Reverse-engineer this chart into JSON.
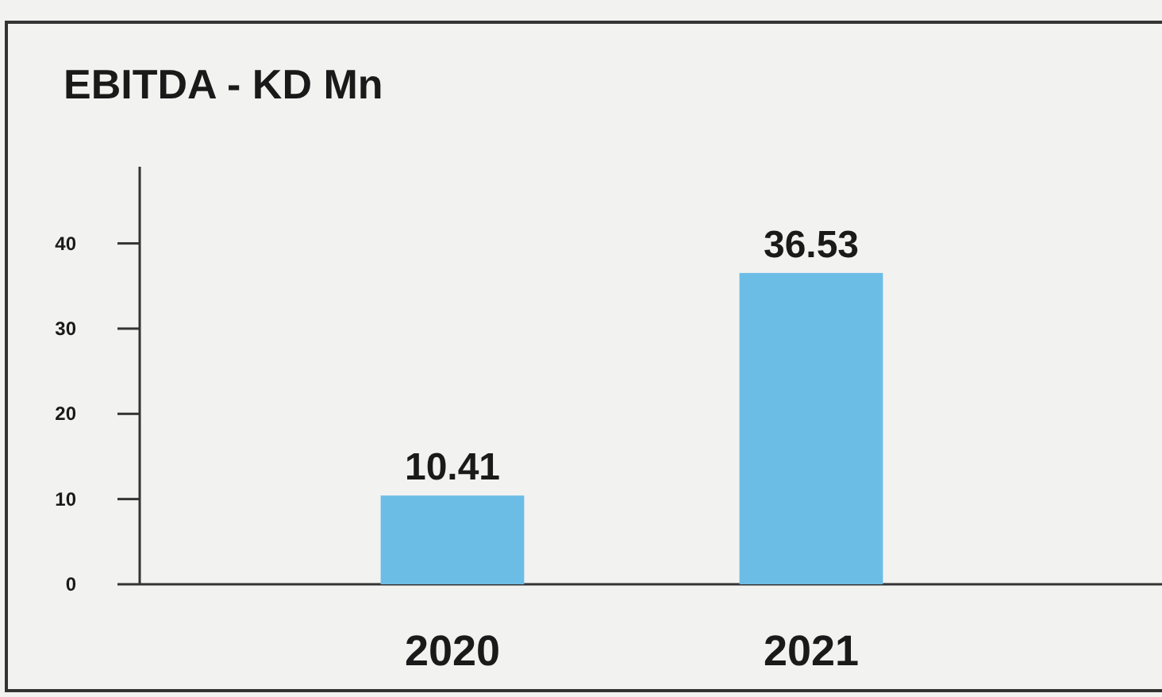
{
  "chart_data": {
    "type": "bar",
    "title": "EBITDA - KD Mn",
    "categories": [
      "2020",
      "2021"
    ],
    "values": [
      10.41,
      36.53
    ],
    "color": "#6bbde6",
    "ylim": [
      0,
      49
    ],
    "yticks": [
      0,
      10,
      20,
      30,
      40
    ],
    "data_labels": true,
    "grid": false
  }
}
